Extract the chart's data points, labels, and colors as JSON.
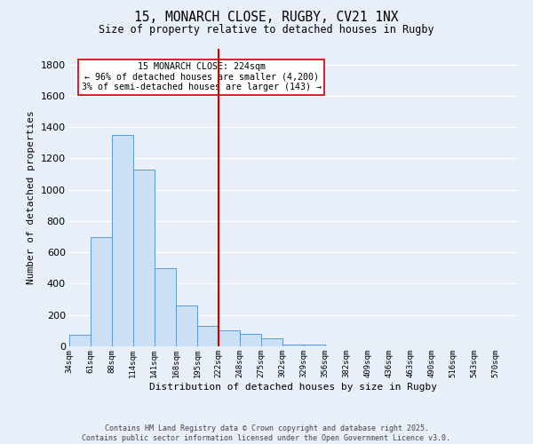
{
  "title1": "15, MONARCH CLOSE, RUGBY, CV21 1NX",
  "title2": "Size of property relative to detached houses in Rugby",
  "xlabel": "Distribution of detached houses by size in Rugby",
  "ylabel": "Number of detached properties",
  "bins": [
    "34sqm",
    "61sqm",
    "88sqm",
    "114sqm",
    "141sqm",
    "168sqm",
    "195sqm",
    "222sqm",
    "248sqm",
    "275sqm",
    "302sqm",
    "329sqm",
    "356sqm",
    "382sqm",
    "409sqm",
    "436sqm",
    "463sqm",
    "490sqm",
    "516sqm",
    "543sqm",
    "570sqm"
  ],
  "bin_edges": [
    34,
    61,
    88,
    114,
    141,
    168,
    195,
    222,
    248,
    275,
    302,
    329,
    356,
    382,
    409,
    436,
    463,
    490,
    516,
    543,
    570
  ],
  "values": [
    75,
    700,
    1350,
    1130,
    500,
    260,
    130,
    100,
    80,
    50,
    10,
    10,
    2,
    1,
    0,
    0,
    0,
    0,
    0,
    0
  ],
  "bar_color": "#cce0f5",
  "bar_edge_color": "#5b9bd5",
  "bg_color": "#e8eff8",
  "grid_color": "#ffffff",
  "red_line_x": 222,
  "annotation_text": "15 MONARCH CLOSE: 224sqm\n← 96% of detached houses are smaller (4,200)\n3% of semi-detached houses are larger (143) →",
  "annotation_box_color": "#ffffff",
  "annotation_box_edge": "#cc0000",
  "ylim": [
    0,
    1900
  ],
  "yticks": [
    0,
    200,
    400,
    600,
    800,
    1000,
    1200,
    1400,
    1600,
    1800
  ],
  "footer1": "Contains HM Land Registry data © Crown copyright and database right 2025.",
  "footer2": "Contains public sector information licensed under the Open Government Licence v3.0."
}
